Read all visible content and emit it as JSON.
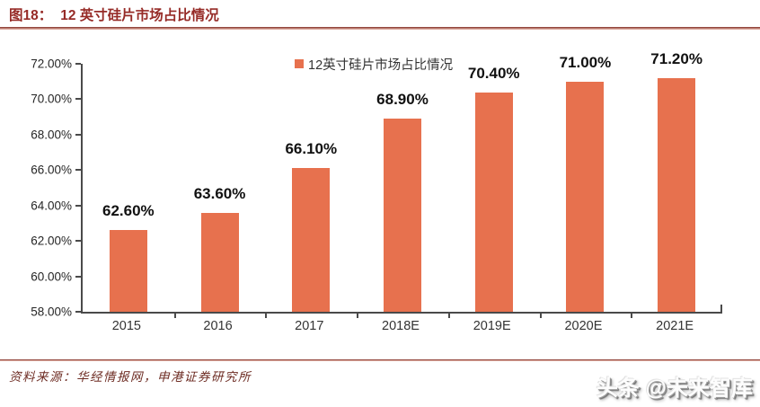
{
  "header": {
    "figure_label": "图18：",
    "title": "12 英寸硅片市场占比情况",
    "title_color": "#962B27"
  },
  "legend": {
    "label": "12英寸硅片市场占比情况"
  },
  "chart_data": {
    "type": "bar",
    "title": "12英寸硅片市场占比情况",
    "categories": [
      "2015",
      "2016",
      "2017",
      "2018E",
      "2019E",
      "2020E",
      "2021E"
    ],
    "values": [
      62.6,
      63.6,
      66.1,
      68.9,
      70.4,
      71.0,
      71.2
    ],
    "data_labels": [
      "62.60%",
      "63.60%",
      "66.10%",
      "68.90%",
      "70.40%",
      "71.00%",
      "71.20%"
    ],
    "xlabel": "",
    "ylabel": "",
    "ylim": [
      58,
      72
    ],
    "yticks": [
      {
        "value": 72,
        "label": "72.00%"
      },
      {
        "value": 70,
        "label": "70.00%"
      },
      {
        "value": 68,
        "label": "68.00%"
      },
      {
        "value": 66,
        "label": "66.00%"
      },
      {
        "value": 64,
        "label": "64.00%"
      },
      {
        "value": 62,
        "label": "62.00%"
      },
      {
        "value": 60,
        "label": "60.00%"
      },
      {
        "value": 58,
        "label": "58.00%"
      }
    ],
    "grid": false,
    "legend_position": "top-center",
    "bar_color": "#E7714E",
    "axis_color": "#4A4A4A"
  },
  "footer": {
    "source": "资料来源：华经情报网，申港证券研究所",
    "source_color": "#6E2D24",
    "watermark": "头条 @未来智库",
    "divider_color": "#94483F"
  }
}
